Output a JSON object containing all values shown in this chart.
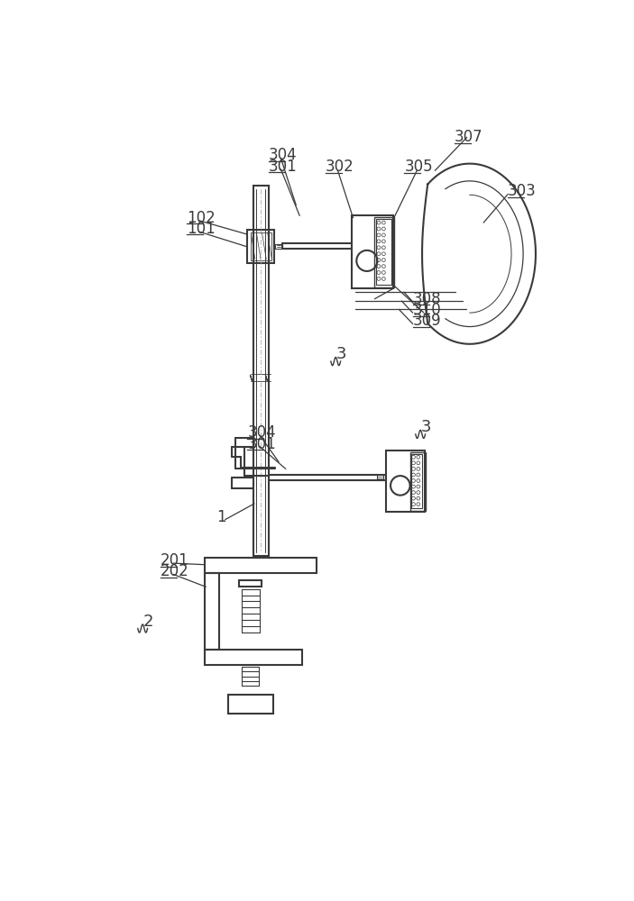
{
  "bg_color": "#ffffff",
  "lc": "#3a3a3a",
  "lw": 1.5,
  "fig_w": 7.03,
  "fig_h": 10.0
}
